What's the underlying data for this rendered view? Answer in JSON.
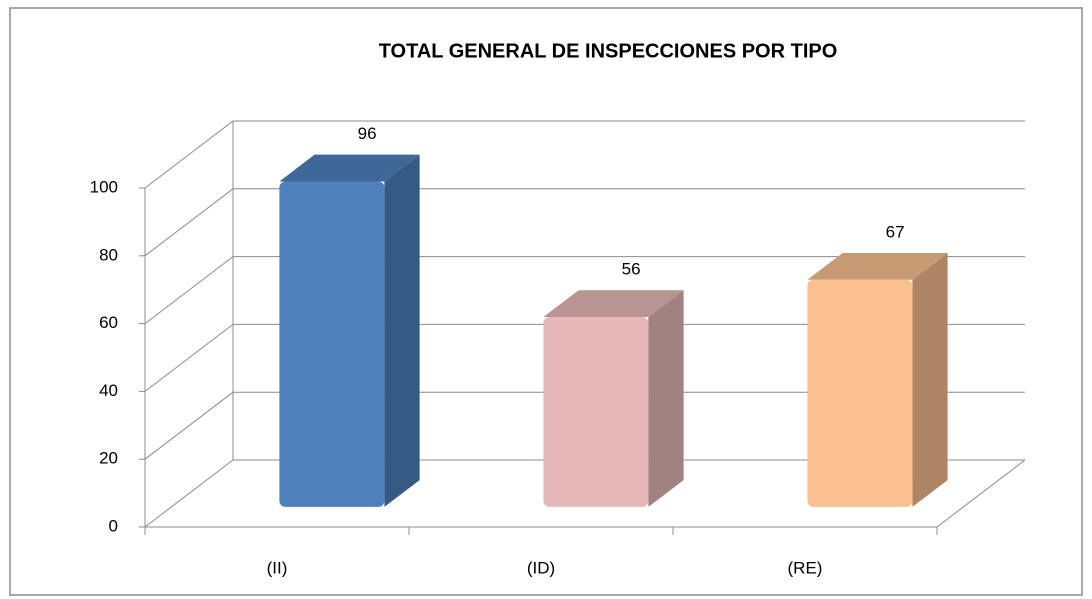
{
  "chart_data": {
    "type": "bar3d",
    "title": "TOTAL GENERAL DE INSPECCIONES POR TIPO",
    "categories": [
      "(II)",
      "(ID)",
      "(RE)"
    ],
    "values": [
      96,
      56,
      67
    ],
    "colors": [
      "#4f81bd",
      "#e6b9b8",
      "#fac090"
    ],
    "ylim": [
      0,
      100
    ],
    "yticks": [
      0,
      20,
      40,
      60,
      80,
      100
    ],
    "grid": true
  }
}
